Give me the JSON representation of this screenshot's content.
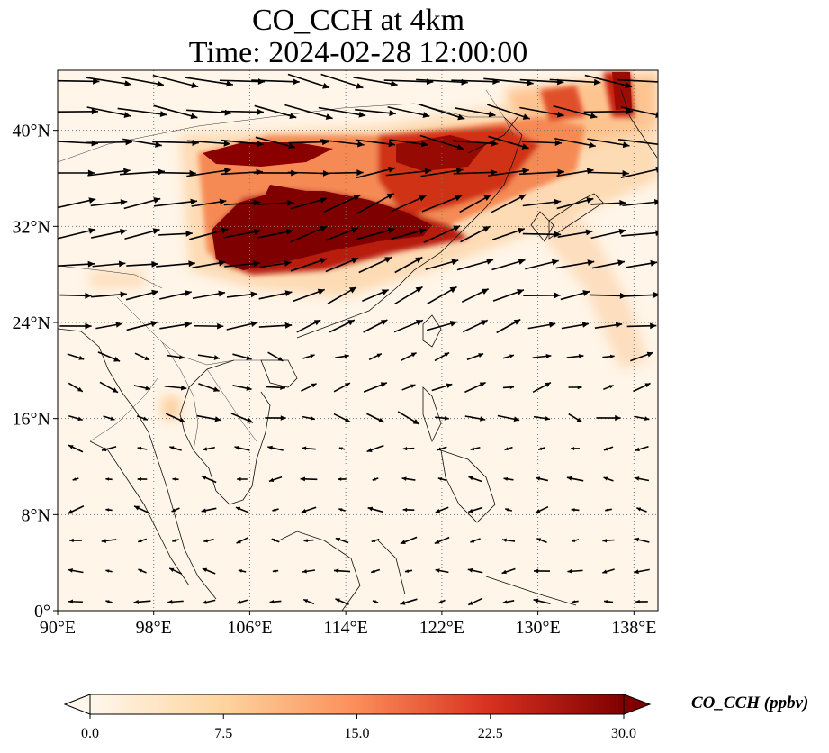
{
  "title_line1": "CO_CCH at 4km",
  "title_line2": "Time: 2024-02-28 12:00:00",
  "map": {
    "lon_range": [
      90,
      140
    ],
    "lat_range": [
      0,
      45
    ],
    "lon_ticks": [
      {
        "value": 90,
        "label": "90°E"
      },
      {
        "value": 98,
        "label": "98°E"
      },
      {
        "value": 106,
        "label": "106°E"
      },
      {
        "value": 114,
        "label": "114°E"
      },
      {
        "value": 122,
        "label": "122°E"
      },
      {
        "value": 130,
        "label": "130°E"
      },
      {
        "value": 138,
        "label": "138°E"
      }
    ],
    "lat_ticks": [
      {
        "value": 0,
        "label": "0°"
      },
      {
        "value": 8,
        "label": "8°N"
      },
      {
        "value": 16,
        "label": "16°N"
      },
      {
        "value": 24,
        "label": "24°N"
      },
      {
        "value": 32,
        "label": "32°N"
      },
      {
        "value": 40,
        "label": "40°N"
      }
    ],
    "gridlines": true,
    "background_color": "#fff5e8",
    "wind_arrows": true
  },
  "colorbar": {
    "label": "CO_CCH (ppbv)",
    "min": 0.0,
    "max": 30.0,
    "ticks": [
      "0.0",
      "7.5",
      "15.0",
      "22.5",
      "30.0"
    ],
    "colormap": "OrRd",
    "extend": "both",
    "colors": [
      "#fff7ec",
      "#fdd49e",
      "#fc8d59",
      "#d7301f",
      "#7f0000"
    ]
  }
}
